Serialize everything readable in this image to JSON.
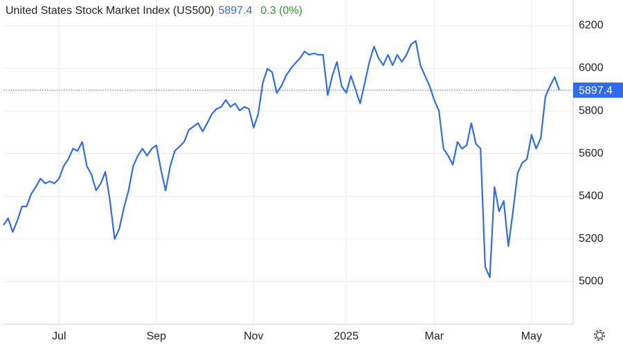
{
  "chart_data": {
    "type": "line",
    "title": "United States Stock Market Index (US500)",
    "last_value": 5897.4,
    "change": "0.3 (0%)",
    "categories": [
      null,
      null,
      null,
      null,
      null,
      null,
      null,
      null,
      null,
      null,
      null,
      null,
      "Jul",
      null,
      null,
      null,
      null,
      null,
      null,
      null,
      null,
      null,
      null,
      null,
      null,
      null,
      null,
      null,
      null,
      null,
      null,
      null,
      null,
      "Sep",
      null,
      null,
      null,
      null,
      null,
      null,
      null,
      null,
      null,
      null,
      null,
      null,
      null,
      null,
      null,
      null,
      null,
      null,
      null,
      null,
      "Nov",
      null,
      null,
      null,
      null,
      null,
      null,
      null,
      null,
      null,
      null,
      null,
      null,
      null,
      null,
      null,
      null,
      null,
      null,
      null,
      "2025",
      null,
      null,
      null,
      null,
      null,
      null,
      null,
      null,
      null,
      null,
      null,
      null,
      null,
      null,
      null,
      null,
      null,
      null,
      "Mar",
      null,
      null,
      null,
      null,
      null,
      null,
      null,
      null,
      null,
      null,
      null,
      null,
      null,
      null,
      null,
      null,
      null,
      null,
      null,
      null,
      "May",
      null,
      null,
      null,
      null,
      null,
      null
    ],
    "series": [
      {
        "name": "US500",
        "color": "#2f6bf0",
        "values": [
          5264,
          5297,
          5232,
          5287,
          5352,
          5352,
          5411,
          5444,
          5483,
          5460,
          5470,
          5460,
          5483,
          5541,
          5574,
          5623,
          5613,
          5655,
          5541,
          5502,
          5427,
          5460,
          5515,
          5378,
          5199,
          5248,
          5346,
          5427,
          5541,
          5590,
          5623,
          5590,
          5623,
          5639,
          5525,
          5427,
          5541,
          5613,
          5633,
          5655,
          5711,
          5727,
          5743,
          5704,
          5743,
          5786,
          5809,
          5819,
          5851,
          5819,
          5835,
          5802,
          5819,
          5809,
          5721,
          5786,
          5933,
          5998,
          5982,
          5884,
          5917,
          5965,
          5998,
          6024,
          6047,
          6079,
          6063,
          6070,
          6063,
          6063,
          5874,
          5965,
          6030,
          5917,
          5884,
          5965,
          5900,
          5835,
          5933,
          6030,
          6102,
          6047,
          6014,
          6063,
          6014,
          6063,
          6030,
          6063,
          6112,
          6128,
          6014,
          5965,
          5917,
          5851,
          5802,
          5623,
          5590,
          5548,
          5655,
          5623,
          5639,
          5743,
          5646,
          5623,
          5069,
          5020,
          5444,
          5329,
          5378,
          5166,
          5329,
          5509,
          5557,
          5574,
          5688,
          5623,
          5672,
          5867,
          5917,
          5959,
          5897.4
        ]
      }
    ],
    "ylim": [
      4800,
      6320
    ],
    "yticks": [
      5000,
      5200,
      5400,
      5600,
      5800,
      6000,
      6200
    ],
    "grid": true
  }
}
